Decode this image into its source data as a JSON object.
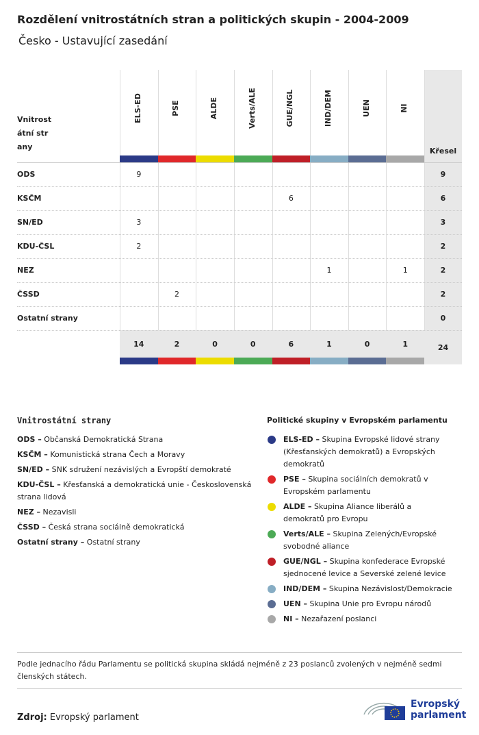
{
  "header": {
    "title": "Rozdělení vnitrostátních stran a politických skupin - 2004-2009",
    "subtitle": "Česko - Ustavující zasedání"
  },
  "table": {
    "party_header": "Vnitrostátní strany",
    "seats_header": "Křesel",
    "groups": [
      {
        "name": "ELS-ED",
        "color": "#2b3a87"
      },
      {
        "name": "PSE",
        "color": "#e0282a"
      },
      {
        "name": "ALDE",
        "color": "#ecdc00"
      },
      {
        "name": "Verts/ALE",
        "color": "#4caa56"
      },
      {
        "name": "GUE/NGL",
        "color": "#bf1f27"
      },
      {
        "name": "IND/DEM",
        "color": "#87adc4"
      },
      {
        "name": "UEN",
        "color": "#5b6d93"
      },
      {
        "name": "NI",
        "color": "#a8a8a8"
      }
    ],
    "rows": [
      {
        "party": "ODS",
        "values": [
          9,
          null,
          null,
          null,
          null,
          null,
          null,
          null
        ],
        "total": 9
      },
      {
        "party": "KSČM",
        "values": [
          null,
          null,
          null,
          null,
          6,
          null,
          null,
          null
        ],
        "total": 6
      },
      {
        "party": "SN/ED",
        "values": [
          3,
          null,
          null,
          null,
          null,
          null,
          null,
          null
        ],
        "total": 3
      },
      {
        "party": "KDU-ČSL",
        "values": [
          2,
          null,
          null,
          null,
          null,
          null,
          null,
          null
        ],
        "total": 2
      },
      {
        "party": "NEZ",
        "values": [
          null,
          null,
          null,
          null,
          null,
          1,
          null,
          1
        ],
        "total": 2
      },
      {
        "party": "ČSSD",
        "values": [
          null,
          2,
          null,
          null,
          null,
          null,
          null,
          null
        ],
        "total": 2
      },
      {
        "party": "Ostatní strany",
        "values": [
          null,
          null,
          null,
          null,
          null,
          null,
          null,
          null
        ],
        "total": 0
      }
    ],
    "totals": [
      14,
      2,
      0,
      0,
      6,
      1,
      0,
      1
    ],
    "grand_total": 24
  },
  "legend": {
    "parties_title": "Vnitrostátní strany",
    "groups_title": "Politické skupiny v Evropském parlamentu",
    "parties": [
      {
        "label": "ODS",
        "description": "Občanská Demokratická Strana"
      },
      {
        "label": "KSČM",
        "description": "Komunistická strana Čech a Moravy"
      },
      {
        "label": "SN/ED",
        "description": "SNK sdružení nezávislých a Evropští demokraté"
      },
      {
        "label": "KDU-ČSL",
        "description": "Křesťanská a demokratická unie - Československá strana lidová"
      },
      {
        "label": "NEZ",
        "description": "Nezavisli"
      },
      {
        "label": "ČSSD",
        "description": "Česká strana sociálně demokratická"
      },
      {
        "label": "Ostatní strany",
        "description": "Ostatní strany"
      }
    ],
    "groups": [
      {
        "label": "ELS-ED",
        "description": "Skupina Evropské lidové strany (Křesťanských demokratů) a Evropských demokratů"
      },
      {
        "label": "PSE",
        "description": "Skupina sociálních demokratů v Evropském parlamentu"
      },
      {
        "label": "ALDE",
        "description": "Skupina Aliance liberálů a demokratů pro Evropu"
      },
      {
        "label": "Verts/ALE",
        "description": "Skupina Zelených/Evropské svobodné aliance"
      },
      {
        "label": "GUE/NGL",
        "description": "Skupina konfederace Evropské sjednocené levice a Severské zelené levice"
      },
      {
        "label": "IND/DEM",
        "description": "Skupina Nezávislost/Demokracie"
      },
      {
        "label": "UEN",
        "description": "Skupina Unie pro Evropu národů"
      },
      {
        "label": "NI",
        "description": "Nezařazení poslanci"
      }
    ]
  },
  "footer": {
    "note": "Podle jednacího řádu Parlamentu se politická skupina skládá nejméně z 23 poslanců zvolených v nejméně sedmi členských státech.",
    "source_label": "Zdroj:",
    "source": "Evropský parlament",
    "logo_line1": "Evropský",
    "logo_line2": "parlament"
  }
}
